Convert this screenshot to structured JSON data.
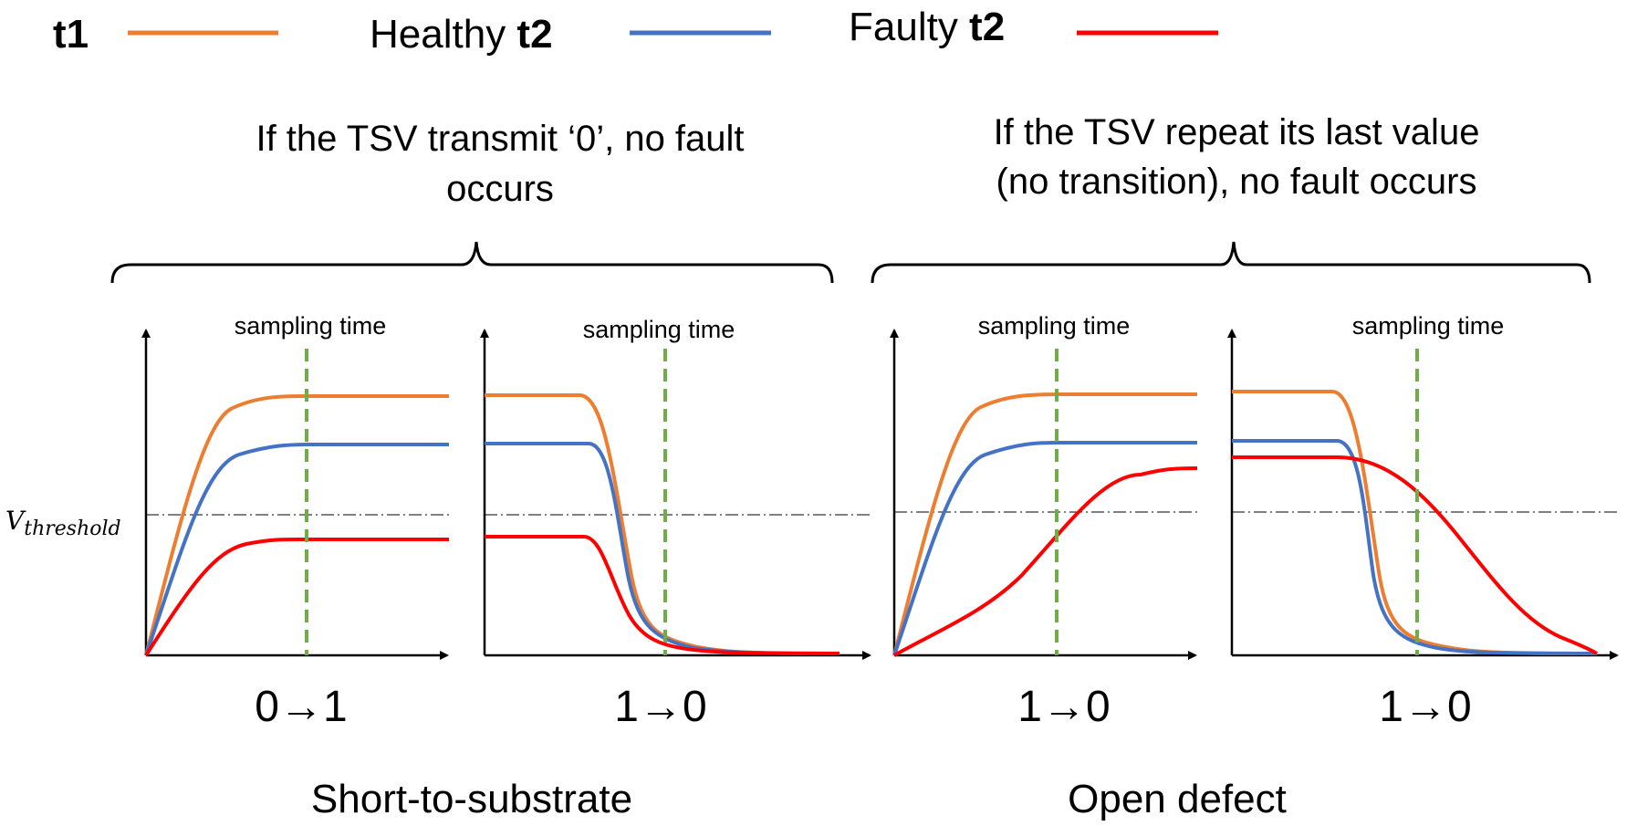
{
  "legend": {
    "items": [
      {
        "prefix": "",
        "bold": "t1",
        "color": "#ED7D31"
      },
      {
        "prefix": "Healthy ",
        "bold": "t2",
        "color": "#4472C4"
      },
      {
        "prefix": "Faulty ",
        "bold": "t2",
        "color": "#FF0000"
      }
    ]
  },
  "colors": {
    "t1": "#ED7D31",
    "healthy_t2": "#4472C4",
    "faulty_t2": "#FF0000",
    "sampling_line": "#70AD47",
    "threshold_line": "#000000"
  },
  "groups": [
    {
      "note_lines": [
        "If the TSV transmit ‘0’, no fault",
        "occurs"
      ],
      "defect_label": "Short-to-substrate"
    },
    {
      "note_lines": [
        "If the TSV repeat its last value",
        "(no transition), no fault occurs"
      ],
      "defect_label": "Open defect"
    }
  ],
  "threshold_label": {
    "main": "V",
    "sub": "threshold"
  },
  "panels": [
    {
      "sampling_label": "sampling time",
      "transition_label": "0→1"
    },
    {
      "sampling_label": "sampling time",
      "transition_label": "1→0"
    },
    {
      "sampling_label": "sampling time",
      "transition_label": "1→0"
    },
    {
      "sampling_label": "sampling time",
      "transition_label": "1→0"
    }
  ]
}
